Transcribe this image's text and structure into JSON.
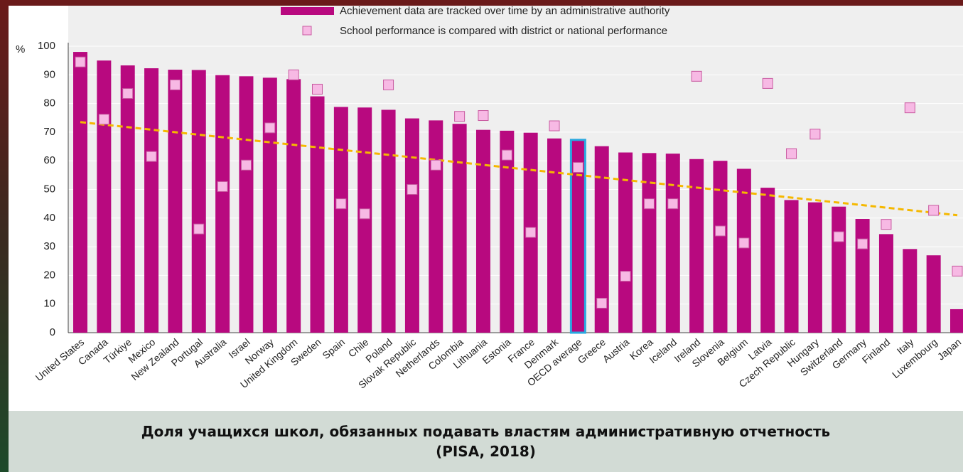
{
  "chart_data": {
    "type": "bar",
    "y_label": "%",
    "caption": [
      "Доля учащихся школ, обязанных подавать властям административную отчетность",
      "(PISA, 2018)"
    ],
    "categories": [
      "United States",
      "Canada",
      "Türkiye",
      "Mexico",
      "New Zealand",
      "Portugal",
      "Australia",
      "Israel",
      "Norway",
      "United Kingdom",
      "Sweden",
      "Spain",
      "Chile",
      "Poland",
      "Slovak Republic",
      "Netherlands",
      "Colombia",
      "Lithuania",
      "Estonia",
      "France",
      "Denmark",
      "OECD average",
      "Greece",
      "Austria",
      "Korea",
      "Iceland",
      "Ireland",
      "Slovenia",
      "Belgium",
      "Latvia",
      "Czech Republic",
      "Hungary",
      "Switzerland",
      "Germany",
      "Finland",
      "Italy",
      "Luxembourg",
      "Japan"
    ],
    "series": [
      {
        "name": "Achievement data are tracked over time by an administrative authority",
        "color": "#b8097f",
        "values": [
          98,
          95,
          93.3,
          92.3,
          91.8,
          91.7,
          89.9,
          89.5,
          89,
          88.5,
          82.5,
          78.8,
          78.6,
          77.8,
          74.8,
          74.1,
          72.9,
          70.8,
          70.5,
          69.8,
          67.8,
          67.3,
          65.1,
          62.9,
          62.7,
          62.5,
          60.6,
          60,
          57.2,
          50.6,
          46.3,
          45.5,
          44,
          39.7,
          34.4,
          29.2,
          27,
          8.2
        ]
      },
      {
        "name": "School performance is compared with district or national performance",
        "color": "#f7b9e4",
        "stroke": "#c85aa0",
        "values": [
          94.5,
          74.5,
          83.5,
          61.5,
          86.5,
          36.2,
          51,
          58.5,
          71.5,
          90,
          85,
          45,
          41.5,
          86.5,
          50,
          58.5,
          75.5,
          75.8,
          62,
          35,
          72.2,
          57.7,
          10.3,
          19.7,
          45,
          45,
          89.5,
          35.5,
          31.3,
          87,
          62.5,
          69.3,
          33.5,
          31,
          37.8,
          78.5,
          42.7,
          21.5
        ]
      }
    ],
    "highlight_index": 21,
    "highlight_color": "#2aa9e0",
    "trend": {
      "values": [
        73.5,
        41
      ],
      "color": "#f5b800"
    },
    "ylim": [
      0,
      100
    ],
    "yticks": [
      0,
      10,
      20,
      30,
      40,
      50,
      60,
      70,
      80,
      90,
      100
    ],
    "grid": true
  }
}
